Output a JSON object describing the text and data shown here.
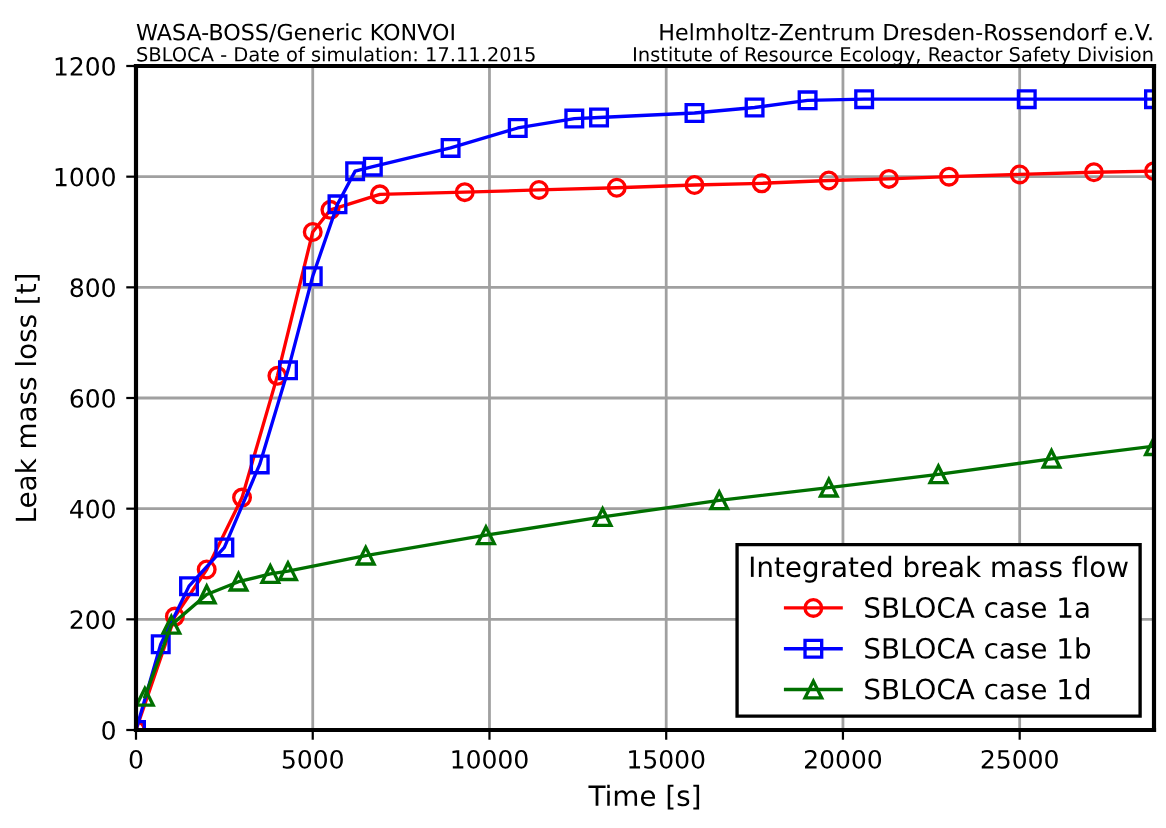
{
  "chart_data": {
    "type": "line",
    "title": "WASA-BOSS/Generic KONVOI",
    "subtitle": "SBLOCA - Date of simulation: 17.11.2015",
    "annotations": [
      "Helmholtz-Zentrum Dresden-Rossendorf e.V.",
      "Institute of Resource Ecology, Reactor Safety Division"
    ],
    "xlabel": "Time [s]",
    "ylabel": "Leak mass loss [t]",
    "legend_title": "Integrated break mass flow",
    "legend": "bottom right",
    "grid": true,
    "line_style": "solid",
    "xlim": [
      0,
      28800
    ],
    "xticks": [
      0,
      5000,
      10000,
      15000,
      20000,
      25000
    ],
    "ylim": [
      0,
      1200
    ],
    "yticks": [
      0,
      200,
      400,
      600,
      800,
      1000,
      1200
    ],
    "series": [
      {
        "name": "SBLOCA case 1a",
        "color": "#ff0000",
        "marker": "circle",
        "x": [
          0,
          1100,
          2000,
          3000,
          4000,
          5000,
          5500,
          6900,
          9300,
          11400,
          13600,
          15800,
          17700,
          19600,
          21300,
          23000,
          25000,
          27100,
          28800
        ],
        "values": [
          0,
          205,
          290,
          420,
          640,
          900,
          940,
          968,
          972,
          976,
          980,
          985,
          988,
          993,
          996,
          1000,
          1004,
          1008,
          1010
        ]
      },
      {
        "name": "SBLOCA case 1b",
        "color": "#0000ff",
        "marker": "square",
        "x": [
          0,
          700,
          1500,
          2500,
          3500,
          4300,
          5000,
          5700,
          6200,
          6700,
          8900,
          10800,
          12400,
          13100,
          15800,
          17500,
          19000,
          20600,
          25200,
          28800
        ],
        "values": [
          0,
          155,
          260,
          330,
          480,
          650,
          820,
          950,
          1010,
          1018,
          1052,
          1088,
          1105,
          1107,
          1115,
          1125,
          1138,
          1140,
          1140,
          1140
        ]
      },
      {
        "name": "SBLOCA case 1d",
        "color": "#007000",
        "marker": "triangle",
        "x": [
          250,
          1000,
          2000,
          2900,
          3800,
          4300,
          6500,
          9900,
          13200,
          16500,
          19600,
          22700,
          25900,
          28800
        ],
        "values": [
          60,
          190,
          245,
          268,
          282,
          287,
          315,
          352,
          385,
          415,
          438,
          462,
          490,
          513
        ]
      }
    ]
  }
}
